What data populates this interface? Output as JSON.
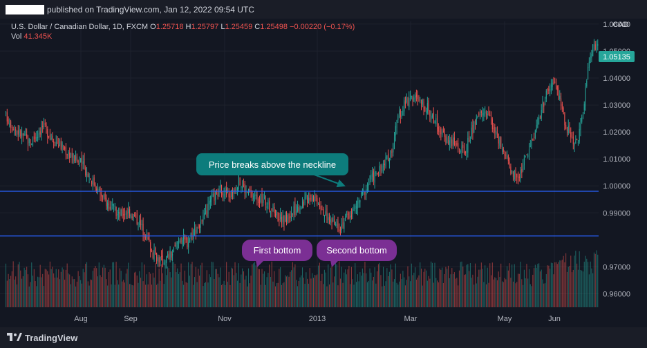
{
  "header": {
    "published": "published on TradingView.com, Jan 12, 2022 09:54 UTC"
  },
  "legend": {
    "symbol": "U.S. Dollar / Canadian Dollar, 1D, FXCM",
    "o_label": "O",
    "o": "1.25718",
    "h_label": "H",
    "h": "1.25797",
    "l_label": "L",
    "l": "1.25459",
    "c_label": "C",
    "c": "1.25498",
    "change": "−0.00220 (−0.17%)",
    "vol_label": "Vol",
    "vol": "41.345K"
  },
  "footer": {
    "brand": "TradingView"
  },
  "colors": {
    "up": "#26a69a",
    "down": "#ef5350",
    "line": "#2962ff",
    "price_badge": "#26a69a",
    "callout_teal": "#0d7c7c",
    "callout_purple": "#7b2f94"
  },
  "chart_data": {
    "type": "candlestick",
    "currency": "CAD",
    "y_ticks": [
      "1.06000",
      "1.05000",
      "1.04000",
      "1.03000",
      "1.02000",
      "1.01000",
      "1.00000",
      "0.99000",
      "0.97000",
      "0.96000"
    ],
    "ylim": [
      0.955,
      1.061
    ],
    "x_ticks": [
      "Aug",
      "Sep",
      "Nov",
      "2013",
      "Mar",
      "May",
      "Jun"
    ],
    "current_price": "1.05135",
    "horizontal_lines": [
      {
        "value": 0.99801,
        "label": "0.99801"
      },
      {
        "value": 0.98143,
        "label": "0.98143"
      }
    ],
    "annotations": [
      {
        "text": "Price breaks above the neckline",
        "style": "teal"
      },
      {
        "text": "First bottom",
        "style": "purple"
      },
      {
        "text": "Second bottom",
        "style": "purple"
      }
    ],
    "close_path": [
      [
        0,
        1.026
      ],
      [
        8,
        1.021
      ],
      [
        20,
        1.016
      ],
      [
        30,
        1.022
      ],
      [
        42,
        1.016
      ],
      [
        52,
        1.012
      ],
      [
        62,
        1.008
      ],
      [
        72,
        1.001
      ],
      [
        80,
        0.995
      ],
      [
        86,
        0.992
      ],
      [
        92,
        0.989
      ],
      [
        100,
        0.991
      ],
      [
        108,
        0.987
      ],
      [
        114,
        0.982
      ],
      [
        120,
        0.975
      ],
      [
        128,
        0.972
      ],
      [
        136,
        0.975
      ],
      [
        142,
        0.981
      ],
      [
        148,
        0.979
      ],
      [
        152,
        0.983
      ],
      [
        160,
        0.986
      ],
      [
        168,
        0.995
      ],
      [
        176,
        0.999
      ],
      [
        182,
        0.996
      ],
      [
        190,
        1.002
      ],
      [
        196,
        0.998
      ],
      [
        204,
        0.996
      ],
      [
        212,
        0.994
      ],
      [
        220,
        0.99
      ],
      [
        226,
        0.987
      ],
      [
        234,
        0.99
      ],
      [
        242,
        0.994
      ],
      [
        250,
        0.997
      ],
      [
        256,
        0.994
      ],
      [
        262,
        0.988
      ],
      [
        272,
        0.985
      ],
      [
        278,
        0.988
      ],
      [
        284,
        0.991
      ],
      [
        290,
        0.996
      ],
      [
        298,
        1.003
      ],
      [
        306,
        1.006
      ],
      [
        314,
        1.012
      ],
      [
        320,
        1.025
      ],
      [
        326,
        1.031
      ],
      [
        332,
        1.033
      ],
      [
        338,
        1.031
      ],
      [
        344,
        1.029
      ],
      [
        350,
        1.024
      ],
      [
        358,
        1.018
      ],
      [
        366,
        1.016
      ],
      [
        374,
        1.012
      ],
      [
        380,
        1.02
      ],
      [
        386,
        1.026
      ],
      [
        392,
        1.028
      ],
      [
        398,
        1.022
      ],
      [
        404,
        1.014
      ],
      [
        410,
        1.008
      ],
      [
        414,
        1.005
      ],
      [
        418,
        1.003
      ],
      [
        424,
        1.01
      ],
      [
        430,
        1.018
      ],
      [
        436,
        1.027
      ],
      [
        442,
        1.035
      ],
      [
        448,
        1.038
      ],
      [
        452,
        1.032
      ],
      [
        456,
        1.024
      ],
      [
        462,
        1.018
      ],
      [
        466,
        1.016
      ],
      [
        470,
        1.024
      ],
      [
        474,
        1.04
      ],
      [
        478,
        1.05
      ],
      [
        483,
        1.053
      ]
    ],
    "volume_ylim": [
      0,
      60
    ]
  }
}
